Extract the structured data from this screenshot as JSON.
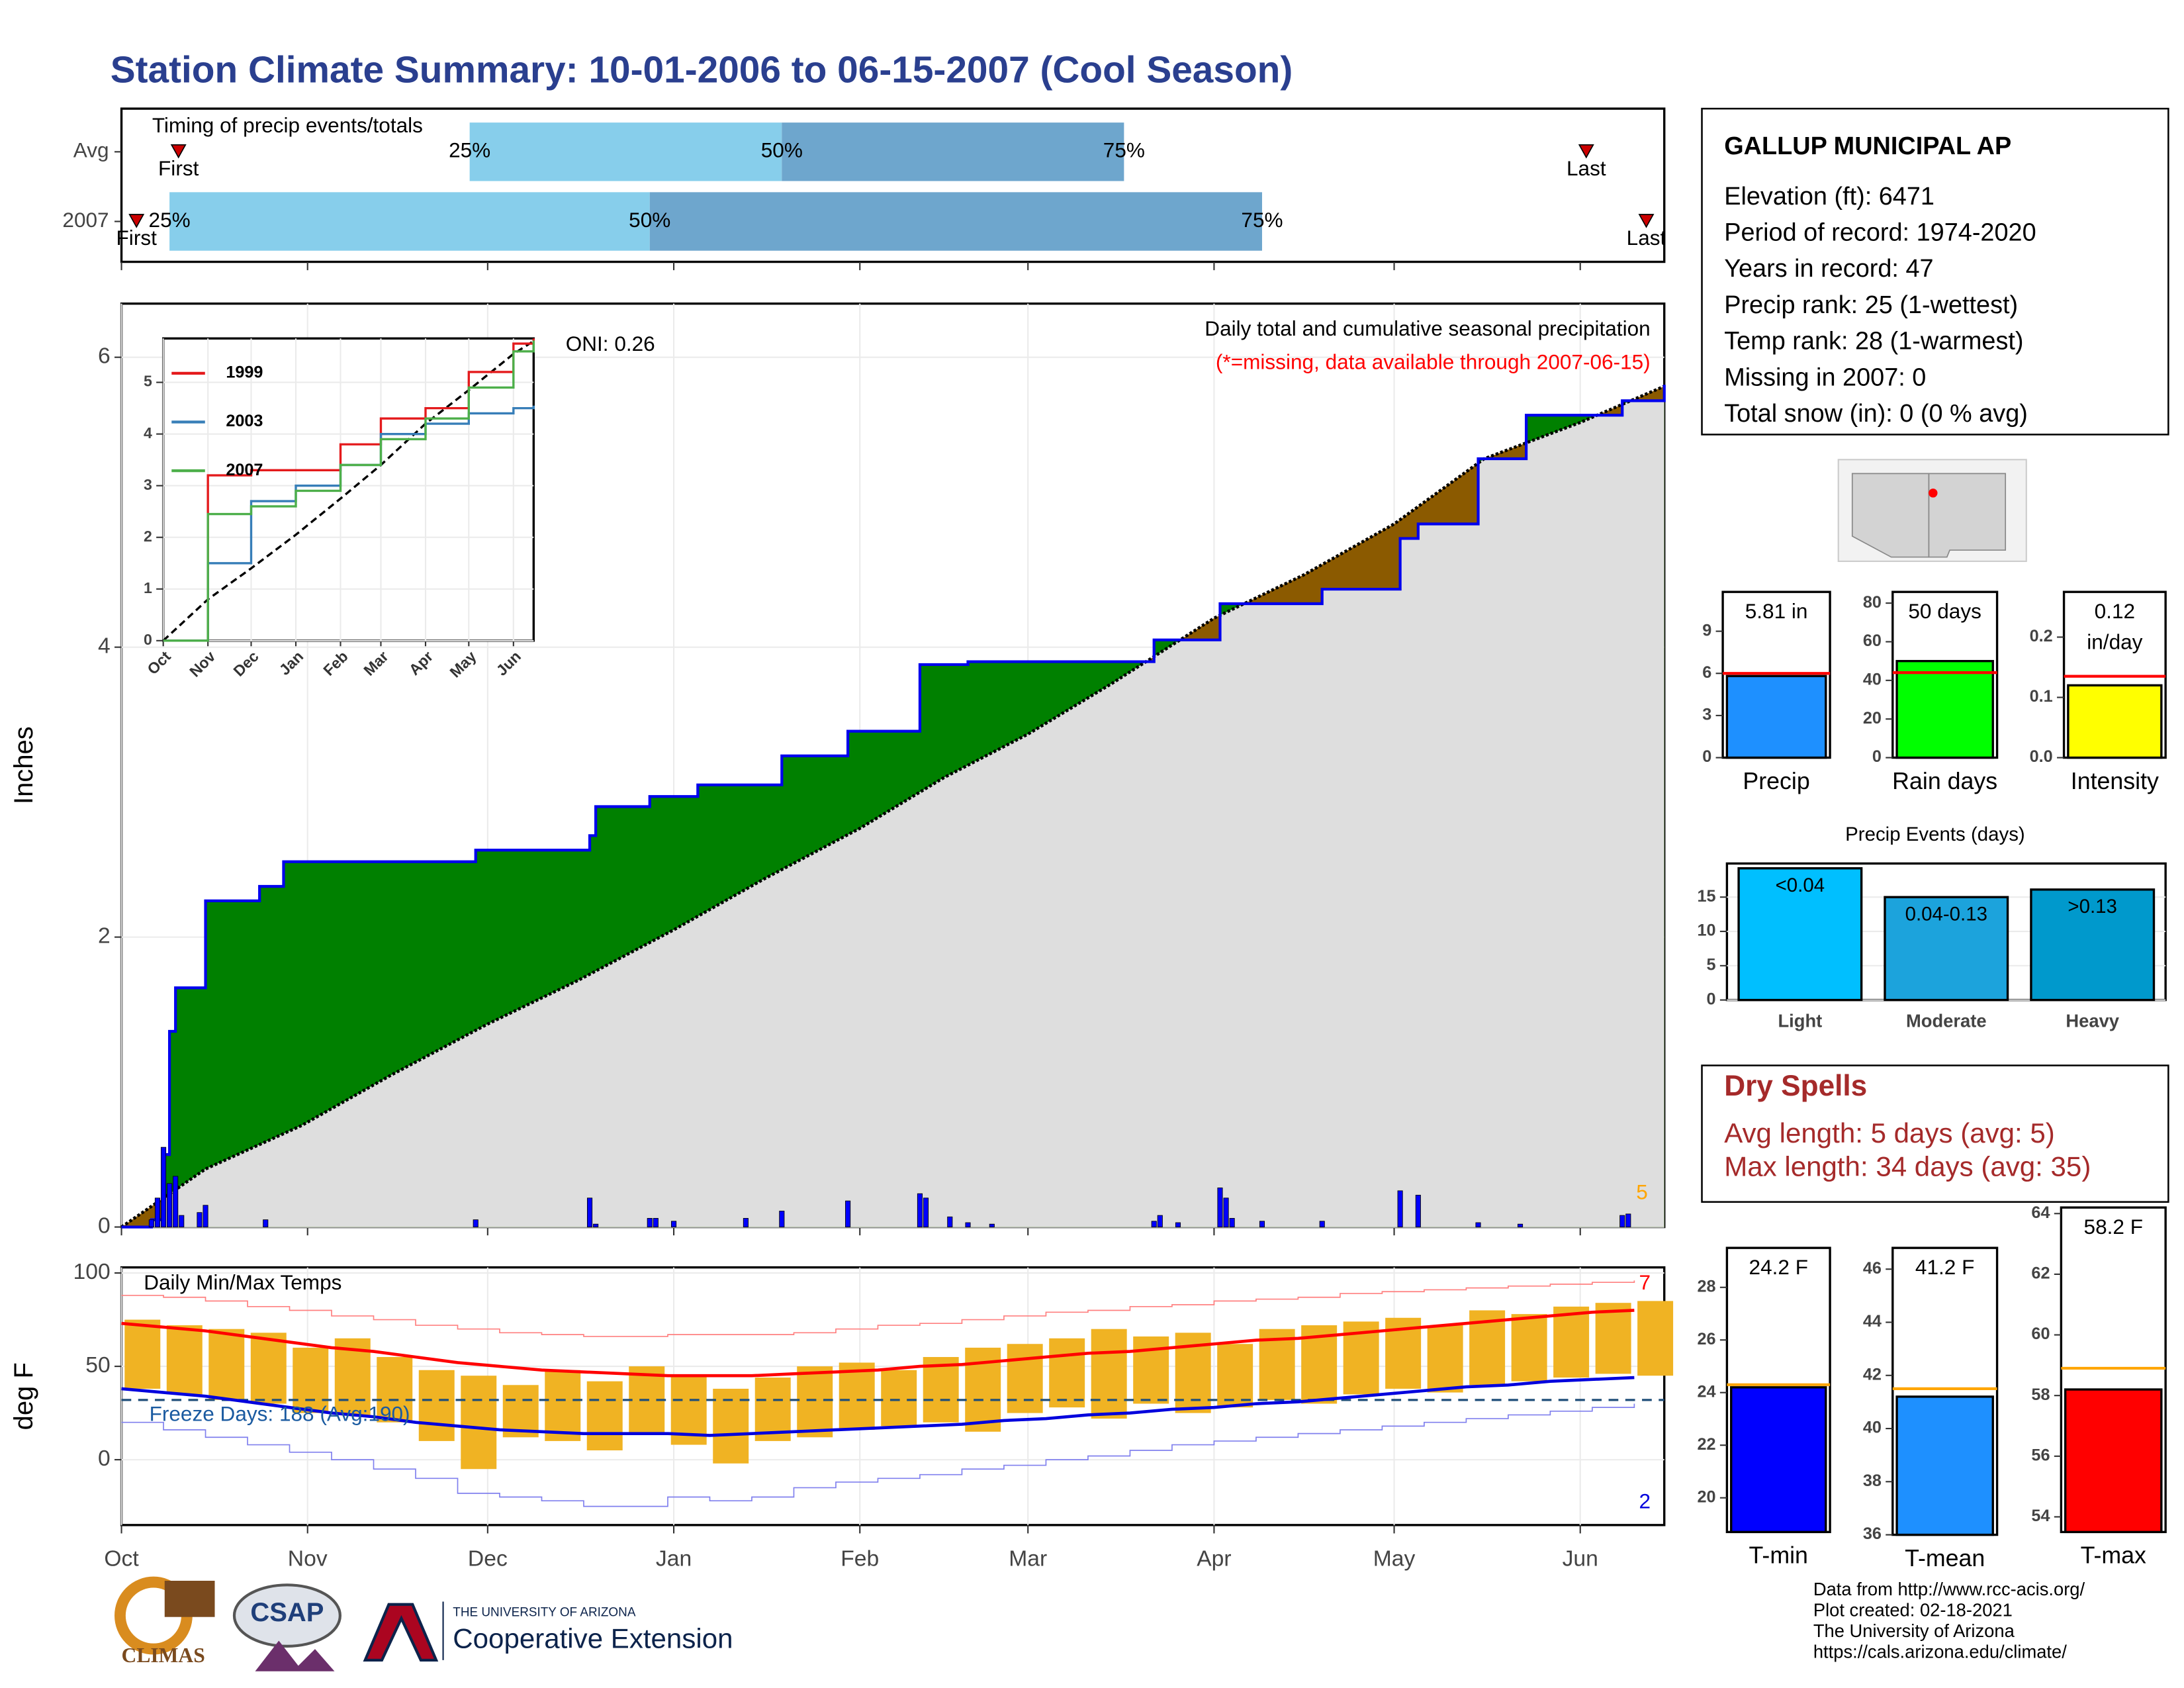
{
  "title": "Station Climate Summary: 10-01-2006 to 06-15-2007 (Cool Season)",
  "station": {
    "name": "GALLUP MUNICIPAL AP",
    "lines": [
      "Elevation (ft): 6471",
      "Period of record: 1974-2020",
      "Years in record: 47",
      "Precip rank: 25 (1-wettest)",
      "Temp rank: 28 (1-warmest)",
      "Missing in 2007: 0",
      "Total snow (in): 0 (0 % avg)"
    ]
  },
  "dry_spells": {
    "title": "Dry Spells",
    "lines": [
      "Avg length: 5 days (avg: 5)",
      "Max length: 34 days (avg: 35)"
    ]
  },
  "footer": {
    "logos": [
      "CLIMAS",
      "CSAP",
      "THE UNIVERSITY OF ARIZONA",
      "Cooperative Extension"
    ],
    "credits": [
      "Data from http://www.rcc-acis.org/",
      "Plot created: 02-18-2021",
      "The University of Arizona",
      "https://cals.arizona.edu/climate/"
    ]
  },
  "chart_data": [
    {
      "type": "timing",
      "title": "Timing of precip events/totals",
      "categories": [
        "Avg",
        "2007"
      ],
      "xlim": [
        0,
        257
      ],
      "xticks": [
        0,
        31,
        61,
        92,
        123,
        151,
        182,
        212,
        243
      ],
      "rows": [
        {
          "first": 9.5,
          "q25": 58,
          "q50": 110,
          "q75": 167,
          "last": 244
        },
        {
          "first": 2.5,
          "q25": 8,
          "q50": 88,
          "q75": 190,
          "last": 254
        }
      ],
      "quantile_labels": [
        "25%",
        "50%",
        "75%"
      ],
      "first_label": "First",
      "last_label": "Last",
      "colors": [
        "#87ceeb",
        "#6ea6cd"
      ],
      "marker_color": "#cc0000"
    },
    {
      "type": "cumulative",
      "title": "Daily total and cumulative seasonal precipitation",
      "subtitle": "(*=missing, data available through 2007-06-15)",
      "annotation": "ONI: 0.26",
      "missing_days": 5,
      "ylabel": "Inches",
      "xlim": [
        0,
        257
      ],
      "ylim": [
        0,
        6.37
      ],
      "yticks": [
        0,
        2,
        4,
        6
      ],
      "xticks": [
        0,
        31,
        61,
        92,
        123,
        151,
        182,
        212,
        243
      ],
      "grid": true,
      "normal": {
        "color": "#dedede",
        "x": [
          0,
          7,
          14,
          30,
          45,
          61,
          76,
          92,
          107,
          123,
          137,
          151,
          165,
          182,
          197,
          212,
          227,
          243,
          257
        ],
        "values": [
          0,
          0.2,
          0.4,
          0.7,
          1.05,
          1.4,
          1.7,
          2.05,
          2.4,
          2.75,
          3.1,
          3.4,
          3.75,
          4.2,
          4.5,
          4.85,
          5.3,
          5.55,
          5.8
        ]
      },
      "season": {
        "color": "#0000ee",
        "x": [
          0,
          5,
          7,
          8,
          9,
          14,
          23,
          27,
          59,
          78,
          79,
          88,
          96,
          110,
          121,
          133,
          141,
          172,
          183,
          200,
          213,
          216,
          226,
          234,
          250,
          257
        ],
        "values": [
          0,
          0.05,
          0.5,
          1.35,
          1.65,
          2.25,
          2.35,
          2.52,
          2.6,
          2.7,
          2.9,
          2.97,
          3.05,
          3.25,
          3.42,
          3.88,
          3.9,
          4.05,
          4.3,
          4.4,
          4.75,
          4.85,
          5.3,
          5.6,
          5.7,
          5.81
        ]
      },
      "above_color": "#008000",
      "below_color": "#8b5a00",
      "daily": {
        "color": "#0000ff",
        "x": [
          5,
          6,
          7,
          8,
          9,
          10,
          13,
          14,
          24,
          59,
          78,
          79,
          88,
          89,
          92,
          104,
          110,
          121,
          133,
          134,
          138,
          141,
          145,
          172,
          173,
          176,
          183,
          184,
          185,
          190,
          200,
          213,
          216,
          226,
          233,
          250,
          251
        ],
        "values": [
          0.05,
          0.2,
          0.55,
          0.3,
          0.35,
          0.08,
          0.1,
          0.15,
          0.05,
          0.05,
          0.2,
          0.02,
          0.06,
          0.06,
          0.04,
          0.06,
          0.11,
          0.18,
          0.23,
          0.2,
          0.07,
          0.03,
          0.02,
          0.04,
          0.08,
          0.03,
          0.27,
          0.2,
          0.06,
          0.04,
          0.04,
          0.25,
          0.22,
          0.03,
          0.02,
          0.08,
          0.09
        ]
      }
    },
    {
      "type": "line",
      "xlim": [
        0,
        257
      ],
      "xticks": [
        {
          "value": 0,
          "label": "Oct"
        },
        {
          "value": 31,
          "label": "Nov"
        },
        {
          "value": 61,
          "label": "Dec"
        },
        {
          "value": 92,
          "label": "Jan"
        },
        {
          "value": 123,
          "label": "Feb"
        },
        {
          "value": 151,
          "label": "Mar"
        },
        {
          "value": 182,
          "label": "Apr"
        },
        {
          "value": 212,
          "label": "May"
        },
        {
          "value": 243,
          "label": "Jun"
        }
      ],
      "ylim": [
        0,
        5.85
      ],
      "yticks": [
        0,
        1,
        2,
        3,
        4,
        5
      ],
      "grid": true,
      "x": [
        0,
        31,
        61,
        92,
        123,
        151,
        182,
        212,
        243,
        257
      ],
      "series": [
        {
          "name": "1999",
          "color": "#e41a1c",
          "values": [
            0,
            3.2,
            3.3,
            3.3,
            3.8,
            4.3,
            4.5,
            5.2,
            5.75,
            5.85
          ]
        },
        {
          "name": "2003",
          "color": "#377eb8",
          "values": [
            0,
            1.5,
            2.7,
            3.0,
            3.4,
            4.0,
            4.2,
            4.4,
            4.5,
            4.55
          ]
        },
        {
          "name": "2007",
          "color": "#4daf4a",
          "values": [
            0,
            2.45,
            2.6,
            2.9,
            3.4,
            3.9,
            4.3,
            4.9,
            5.6,
            5.81
          ]
        }
      ],
      "normal": {
        "color": "#000000",
        "values": [
          0,
          0.8,
          1.4,
          2.05,
          2.75,
          3.4,
          4.2,
          4.85,
          5.55,
          5.8
        ]
      }
    },
    {
      "type": "temperature",
      "title": "Daily Min/Max Temps",
      "ylabel": "deg F",
      "freeze_label": "Freeze Days: 188 (Avg:190)",
      "freeze_line": 32,
      "freeze_color": "#1f4e79",
      "record_highs": 7,
      "record_lows": 2,
      "xlim": [
        0,
        257
      ],
      "ylim": [
        -35,
        103
      ],
      "yticks": [
        0,
        50,
        100
      ],
      "grid": true,
      "xticks": [
        {
          "value": 0,
          "label": "Oct"
        },
        {
          "value": 31,
          "label": "Nov"
        },
        {
          "value": 61,
          "label": "Dec"
        },
        {
          "value": 92,
          "label": "Jan"
        },
        {
          "value": 123,
          "label": "Feb"
        },
        {
          "value": 151,
          "label": "Mar"
        },
        {
          "value": 182,
          "label": "Apr"
        },
        {
          "value": 212,
          "label": "May"
        },
        {
          "value": 243,
          "label": "Jun"
        }
      ],
      "x": [
        0,
        7,
        14,
        21,
        28,
        35,
        42,
        49,
        56,
        63,
        70,
        77,
        84,
        91,
        98,
        105,
        112,
        119,
        126,
        133,
        140,
        147,
        154,
        161,
        168,
        175,
        182,
        189,
        196,
        203,
        210,
        217,
        224,
        231,
        238,
        245,
        252
      ],
      "bar_color": "#f0b323",
      "daily_max": {
        "values": [
          75,
          72,
          70,
          68,
          60,
          65,
          55,
          48,
          45,
          40,
          48,
          42,
          50,
          45,
          38,
          44,
          50,
          52,
          48,
          55,
          60,
          62,
          65,
          70,
          66,
          68,
          62,
          70,
          72,
          74,
          76,
          72,
          80,
          78,
          82,
          84,
          85
        ]
      },
      "daily_min": {
        "values": [
          38,
          35,
          32,
          30,
          25,
          24,
          20,
          10,
          -5,
          12,
          10,
          5,
          14,
          8,
          -2,
          10,
          12,
          16,
          18,
          20,
          15,
          25,
          28,
          22,
          30,
          25,
          28,
          32,
          30,
          35,
          38,
          36,
          40,
          42,
          44,
          46,
          45
        ]
      },
      "normal_max": {
        "color": "#ff0000",
        "values": [
          73,
          71,
          69,
          66,
          63,
          60,
          58,
          55,
          52,
          50,
          48,
          47,
          46,
          45,
          45,
          45,
          46,
          47,
          48,
          50,
          51,
          53,
          55,
          57,
          58,
          60,
          62,
          64,
          65,
          67,
          69,
          71,
          73,
          75,
          77,
          79,
          80
        ]
      },
      "normal_min": {
        "color": "#0000dd",
        "values": [
          38,
          36,
          34,
          31,
          28,
          25,
          23,
          20,
          18,
          16,
          15,
          14,
          14,
          14,
          13,
          14,
          15,
          16,
          17,
          18,
          19,
          21,
          22,
          24,
          25,
          27,
          28,
          30,
          31,
          33,
          35,
          37,
          39,
          40,
          42,
          43,
          44
        ]
      },
      "record_max": {
        "color": "#ff8080",
        "values": [
          88,
          87,
          85,
          82,
          80,
          77,
          75,
          72,
          70,
          68,
          67,
          66,
          66,
          67,
          67,
          67,
          68,
          70,
          72,
          73,
          75,
          77,
          79,
          80,
          82,
          83,
          85,
          86,
          87,
          89,
          90,
          91,
          92,
          93,
          94,
          95,
          96
        ]
      },
      "record_min": {
        "color": "#8080ee",
        "values": [
          20,
          16,
          12,
          8,
          4,
          0,
          -5,
          -10,
          -18,
          -20,
          -22,
          -25,
          -25,
          -20,
          -22,
          -20,
          -15,
          -12,
          -10,
          -8,
          -5,
          -3,
          0,
          2,
          5,
          8,
          10,
          12,
          14,
          16,
          18,
          20,
          22,
          24,
          26,
          28,
          30
        ]
      }
    },
    {
      "type": "bar",
      "categories": [
        "Precip"
      ],
      "values": [
        5.81
      ],
      "value_labels": [
        "5.81 in"
      ],
      "color": "#1e90ff",
      "normal": 6.0,
      "normal_color": "#ff0000",
      "ylim": [
        0,
        11.8
      ],
      "yticks": [
        0,
        3,
        6,
        9
      ]
    },
    {
      "type": "bar",
      "categories": [
        "Rain days"
      ],
      "values": [
        50
      ],
      "value_labels": [
        "50 days"
      ],
      "color": "#00ff00",
      "normal": 44,
      "normal_color": "#ff0000",
      "ylim": [
        0,
        85.8
      ],
      "yticks": [
        0,
        20,
        40,
        60,
        80
      ]
    },
    {
      "type": "bar",
      "categories": [
        "Intensity"
      ],
      "values": [
        0.12
      ],
      "value_labels": [
        "0.12 in/day"
      ],
      "color": "#ffff00",
      "normal": 0.135,
      "normal_color": "#ff0000",
      "ylim": [
        0,
        0.275
      ],
      "yticks": [
        {
          "value": 0,
          "label": "0.0"
        },
        {
          "value": 0.1,
          "label": "0.1"
        },
        {
          "value": 0.2,
          "label": "0.2"
        }
      ]
    },
    {
      "type": "bar",
      "title": "Precip Events (days)",
      "categories": [
        "Light",
        "Moderate",
        "Heavy"
      ],
      "values": [
        19.2,
        15,
        16.1
      ],
      "bar_labels": [
        "<0.04",
        "0.04-0.13",
        ">0.13"
      ],
      "colors": [
        "#00bfff",
        "#1ca3dc",
        "#0099cc"
      ],
      "ylim": [
        0,
        19.9
      ],
      "yticks": [
        0,
        5,
        10,
        15
      ],
      "grid": true
    },
    {
      "type": "bar",
      "categories": [
        "T-min"
      ],
      "values": [
        24.2
      ],
      "value_labels": [
        "24.2 F"
      ],
      "color": "#0000ff",
      "normal": 24.3,
      "normal_color": "#ffa500",
      "ylim": [
        18.7,
        29.5
      ],
      "yticks": [
        20,
        22,
        24,
        26,
        28
      ]
    },
    {
      "type": "bar",
      "categories": [
        "T-mean"
      ],
      "values": [
        41.2
      ],
      "value_labels": [
        "41.2 F"
      ],
      "color": "#1e90ff",
      "normal": 41.5,
      "normal_color": "#ffa500",
      "ylim": [
        36,
        46.8
      ],
      "yticks": [
        36,
        38,
        40,
        42,
        44,
        46
      ]
    },
    {
      "type": "bar",
      "categories": [
        "T-max"
      ],
      "values": [
        58.2
      ],
      "value_labels": [
        "58.2 F"
      ],
      "color": "#ff0000",
      "normal": 58.9,
      "normal_color": "#ffa500",
      "ylim": [
        53.5,
        64.2
      ],
      "yticks": [
        54,
        56,
        58,
        60,
        62,
        64
      ]
    }
  ]
}
